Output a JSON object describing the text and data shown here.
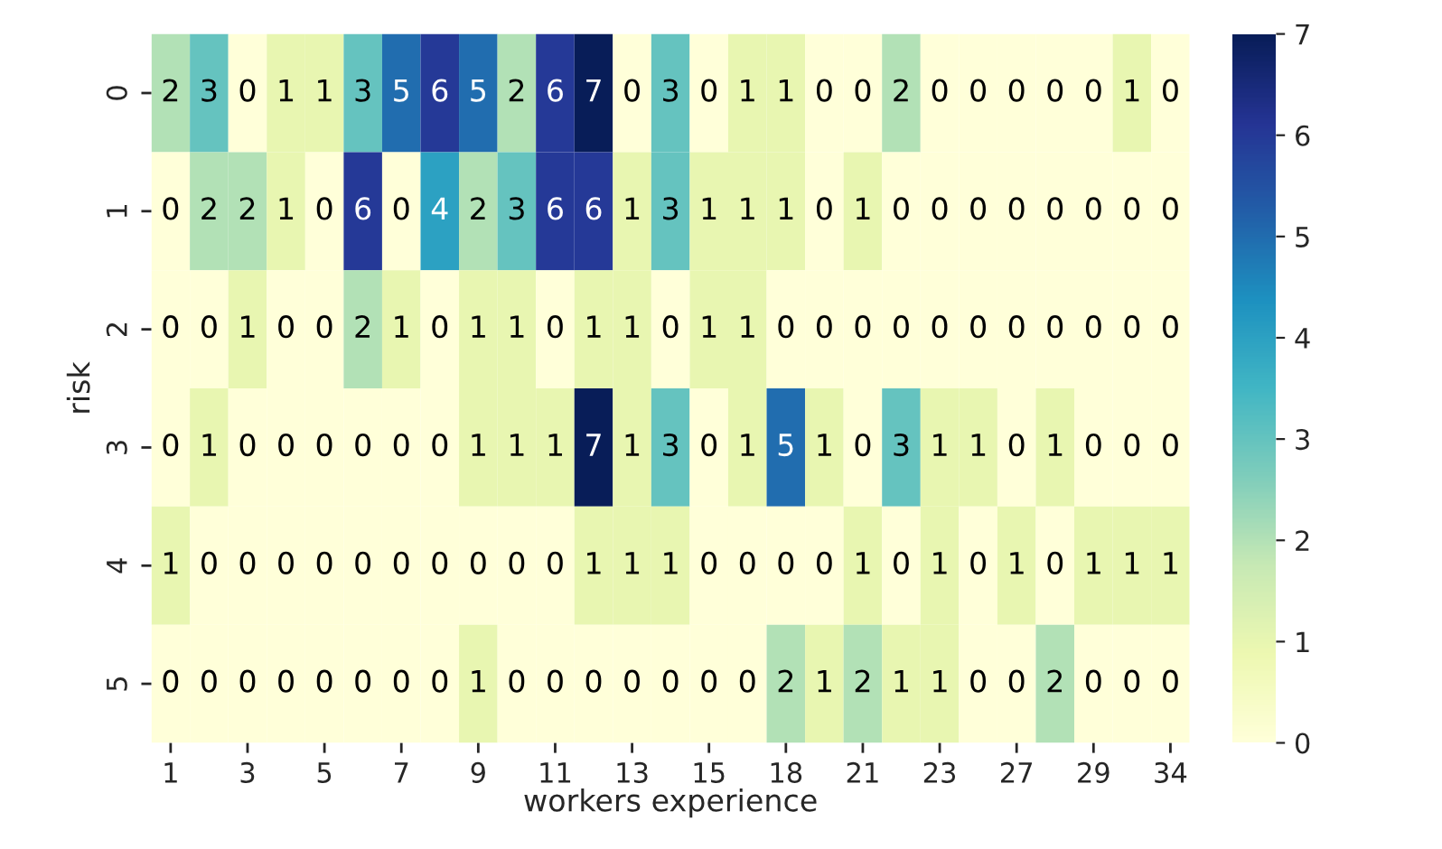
{
  "chart_data": {
    "type": "heatmap",
    "xlabel": "workers experience",
    "ylabel": "risk",
    "categories": [
      "1",
      null,
      "3",
      null,
      "5",
      null,
      "7",
      null,
      "9",
      null,
      "11",
      null,
      "13",
      null,
      "15",
      null,
      "18",
      null,
      "21",
      null,
      "23",
      null,
      "27",
      null,
      "29",
      null,
      "34"
    ],
    "y_categories": [
      "0",
      "1",
      "2",
      "3",
      "4",
      "5"
    ],
    "cells": [
      [
        2,
        3,
        0,
        1,
        1,
        3,
        5,
        6,
        5,
        2,
        6,
        7,
        0,
        3,
        0,
        1,
        1,
        0,
        0,
        2,
        0,
        0,
        0,
        0,
        0,
        1,
        0
      ],
      [
        0,
        2,
        2,
        1,
        0,
        6,
        0,
        4,
        2,
        3,
        6,
        6,
        1,
        3,
        1,
        1,
        1,
        0,
        1,
        0,
        0,
        0,
        0,
        0,
        0,
        0,
        0
      ],
      [
        0,
        0,
        1,
        0,
        0,
        2,
        1,
        0,
        1,
        1,
        0,
        1,
        1,
        0,
        1,
        1,
        0,
        0,
        0,
        0,
        0,
        0,
        0,
        0,
        0,
        0,
        0
      ],
      [
        0,
        1,
        0,
        0,
        0,
        0,
        0,
        0,
        1,
        1,
        1,
        7,
        1,
        3,
        0,
        1,
        5,
        1,
        0,
        3,
        1,
        1,
        0,
        1,
        0,
        0,
        0
      ],
      [
        1,
        0,
        0,
        0,
        0,
        0,
        0,
        0,
        0,
        0,
        0,
        1,
        1,
        1,
        0,
        0,
        0,
        0,
        1,
        0,
        1,
        0,
        1,
        0,
        1,
        1,
        1
      ],
      [
        0,
        0,
        0,
        0,
        0,
        0,
        0,
        0,
        1,
        0,
        0,
        0,
        0,
        0,
        0,
        0,
        2,
        1,
        2,
        1,
        1,
        0,
        0,
        2,
        0,
        0,
        0
      ]
    ],
    "data_labels": true,
    "clim": [
      0,
      7
    ],
    "cticks": [
      0,
      1,
      2,
      3,
      4,
      5,
      6,
      7
    ]
  }
}
